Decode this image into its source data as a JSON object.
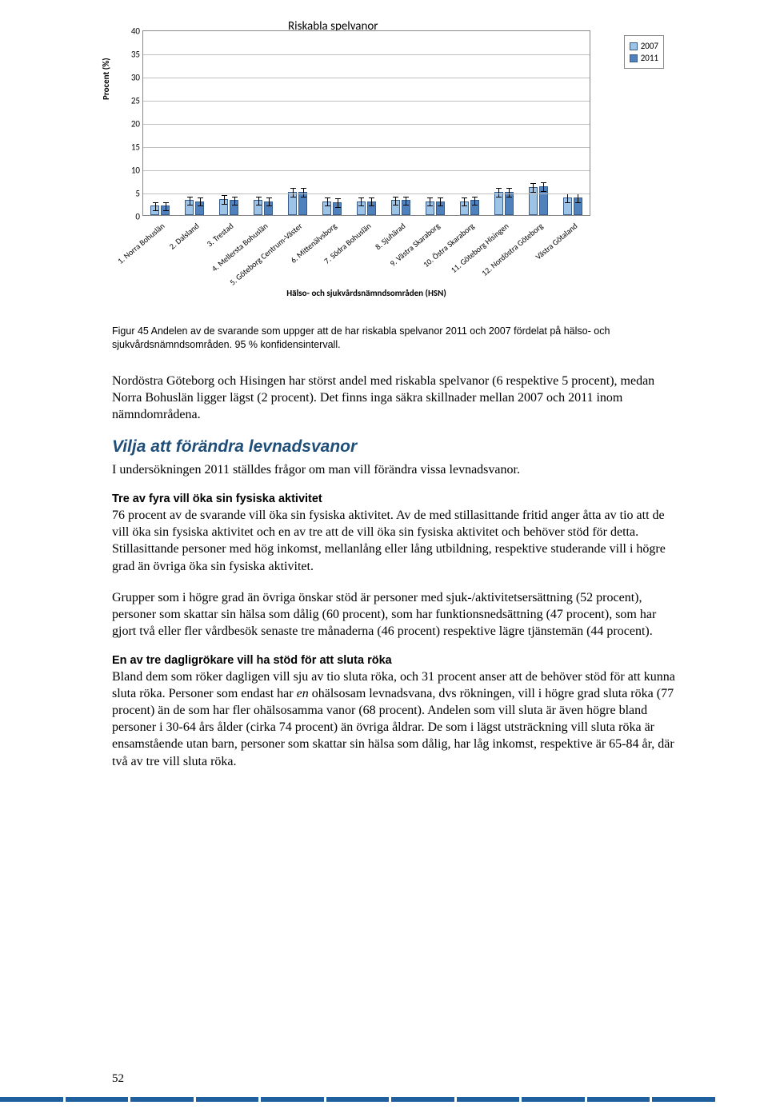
{
  "chart": {
    "type": "bar",
    "title": "Riskabla spelvanor",
    "note": "OBS! Skala 0-40",
    "y_label": "Procent (%)",
    "x_axis_title": "Hälso- och sjukvårdsnämndsområden (HSN)",
    "ylim": [
      0,
      40
    ],
    "ytick_step": 5,
    "yticks": [
      0,
      5,
      10,
      15,
      20,
      25,
      30,
      35,
      40
    ],
    "legend": [
      {
        "label": "2007",
        "color": "#9dc3e6"
      },
      {
        "label": "2011",
        "color": "#4f81bd"
      }
    ],
    "categories": [
      "1. Norra Bohuslän",
      "2. Dalsland",
      "3. Trestad",
      "4. Mellersta Bohuslän",
      "5. Göteborg Centrum-Väster",
      "6. Mittenälvsborg",
      "7. Södra Bohuslän",
      "8. Sjuhärad",
      "9. Västra Skaraborg",
      "10. Östra Skaraborg",
      "11. Göteborg Hisingen",
      "12. Nordöstra Göteborg",
      "Västra Götaland"
    ],
    "series_2007": [
      2.0,
      3.2,
      3.5,
      3.2,
      5.0,
      3.0,
      3.0,
      3.2,
      3.0,
      3.0,
      5.0,
      6.0,
      3.8
    ],
    "series_2011": [
      2.0,
      3.0,
      3.2,
      3.0,
      5.0,
      2.8,
      3.0,
      3.2,
      3.0,
      3.2,
      5.0,
      6.2,
      3.8
    ],
    "bar_border": "#385d8a",
    "grid_color": "#bfbfbf",
    "err_half": 1.0
  },
  "caption": "Figur 45 Andelen av de svarande som uppger att de har riskabla spelvanor 2011 och 2007 fördelat på hälso- och sjukvårdsnämndsområden. 95 % konfidensintervall.",
  "p1": "Nordöstra Göteborg och Hisingen har störst andel med riskabla spelvanor (6 respektive 5 procent), medan Norra Bohuslän ligger lägst (2 procent). Det finns inga säkra skillnader mellan 2007 och 2011 inom nämndområdena.",
  "section_heading": "Vilja att förändra levnadsvanor",
  "p2": "I undersökningen 2011 ställdes frågor om man vill förändra vissa levnadsvanor.",
  "sub1": "Tre av fyra vill öka sin fysiska aktivitet",
  "p3": "76 procent av de svarande vill öka sin fysiska aktivitet. Av de med stillasittande fritid anger åtta av tio att de vill öka sin fysiska aktivitet och en av tre att de vill öka sin fysiska aktivitet och behöver stöd för detta. Stillasittande personer med hög inkomst, mellanlång eller lång utbildning, respektive studerande vill i högre grad än övriga öka sin fysiska aktivitet.",
  "p4": "Grupper som i högre grad än övriga önskar stöd är personer med sjuk-/aktivitetsersättning (52 procent), personer som skattar sin hälsa som dålig (60  procent), som har funktionsnedsättning (47 procent), som har gjort två eller fler vårdbesök senaste tre månaderna (46 procent) respektive lägre tjänstemän (44 procent).",
  "sub2": "En av tre dagligrökare vill ha stöd för att sluta röka",
  "p5a": "Bland dem som röker dagligen vill sju av tio sluta röka, och 31 procent anser att de behöver stöd för att kunna sluta röka. Personer som endast har ",
  "p5_em": "en",
  "p5b": " ohälsosam levnadsvana, dvs rökningen, vill i högre grad sluta röka (77 procent) än de som har fler ohälsosamma vanor (68 procent). Andelen som vill sluta är även högre bland personer i 30-64 års ålder (cirka 74 procent) än övriga åldrar. De som i lägst utsträckning vill sluta röka är ensamstående utan barn, personer som skattar sin hälsa som dålig, har låg inkomst, respektive är 65-84 år, där två av tre vill sluta röka.",
  "page_number": "52"
}
